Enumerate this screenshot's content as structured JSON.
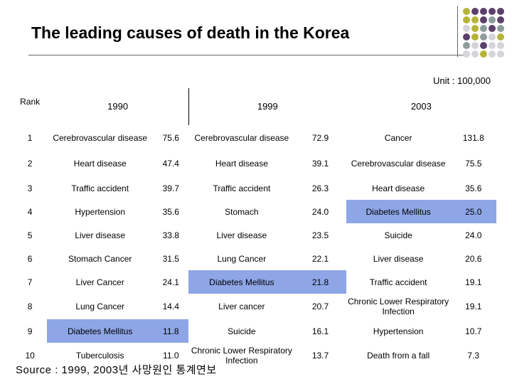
{
  "title": "The leading causes of death in the Korea",
  "unit": "Unit : 100,000",
  "source": "Source : 1999, 2003년 사망원인 통계연보",
  "headers": {
    "rank": "Rank",
    "y1990": "1990",
    "y1999": "1999",
    "y2003": "2003"
  },
  "colors": {
    "highlight": "#8ea6e6",
    "purple": "#5b3f6b",
    "olive": "#b5b43a",
    "gray": "#d4d4d9",
    "teal": "#8f9c9c"
  },
  "dots": [
    "olive",
    "purple",
    "purple",
    "purple",
    "purple",
    "olive",
    "olive",
    "purple",
    "teal",
    "purple",
    "gray",
    "olive",
    "teal",
    "purple",
    "teal",
    "purple",
    "olive",
    "teal",
    "gray",
    "olive",
    "teal",
    "gray",
    "purple",
    "gray",
    "gray",
    "gray",
    "gray",
    "olive",
    "gray",
    "gray"
  ],
  "rows": [
    {
      "rank": "1",
      "c1990": "Cerebrovascular disease",
      "v1990": "75.6",
      "c1999": "Cerebrovascular disease",
      "v1999": "72.9",
      "c2003": "Cancer",
      "v2003": "131.8",
      "hl": ""
    },
    {
      "rank": "2",
      "c1990": "Heart disease",
      "v1990": "47.4",
      "c1999": "Heart disease",
      "v1999": "39.1",
      "c2003": "Cerebrovascular disease",
      "v2003": "75.5",
      "hl": ""
    },
    {
      "rank": "3",
      "c1990": "Traffic accident",
      "v1990": "39.7",
      "c1999": "Traffic accident",
      "v1999": "26.3",
      "c2003": "Heart disease",
      "v2003": "35.6",
      "hl": ""
    },
    {
      "rank": "4",
      "c1990": "Hypertension",
      "v1990": "35.6",
      "c1999": "Stomach",
      "v1999": "24.0",
      "c2003": "Diabetes Mellitus",
      "v2003": "25.0",
      "hl": "2003"
    },
    {
      "rank": "5",
      "c1990": "Liver disease",
      "v1990": "33.8",
      "c1999": "Liver disease",
      "v1999": "23.5",
      "c2003": "Suicide",
      "v2003": "24.0",
      "hl": ""
    },
    {
      "rank": "6",
      "c1990": "Stomach Cancer",
      "v1990": "31.5",
      "c1999": "Lung Cancer",
      "v1999": "22.1",
      "c2003": "Liver disease",
      "v2003": "20.6",
      "hl": ""
    },
    {
      "rank": "7",
      "c1990": "Liver Cancer",
      "v1990": "24.1",
      "c1999": "Diabetes Mellitus",
      "v1999": "21.8",
      "c2003": "Traffic accident",
      "v2003": "19.1",
      "hl": "1999"
    },
    {
      "rank": "8",
      "c1990": "Lung Cancer",
      "v1990": "14.4",
      "c1999": "Liver cancer",
      "v1999": "20.7",
      "c2003": "Chronic Lower Respiratory Infection",
      "v2003": "19.1",
      "hl": ""
    },
    {
      "rank": "9",
      "c1990": "Diabetes Mellitus",
      "v1990": "11.8",
      "c1999": "Suicide",
      "v1999": "16.1",
      "c2003": "Hypertension",
      "v2003": "10.7",
      "hl": "1990"
    },
    {
      "rank": "10",
      "c1990": "Tuberculosis",
      "v1990": "11.0",
      "c1999": "Chronic Lower Respiratory Infection",
      "v1999": "13.7",
      "c2003": "Death from a fall",
      "v2003": "7.3",
      "hl": ""
    }
  ]
}
